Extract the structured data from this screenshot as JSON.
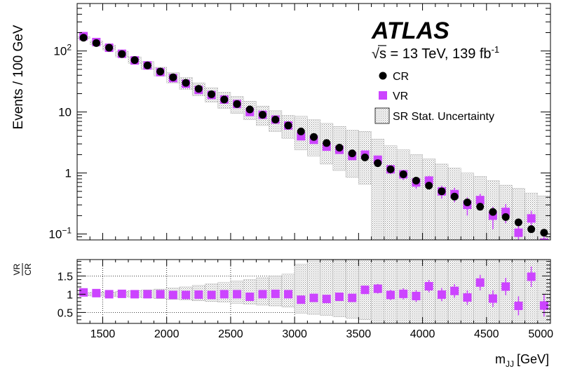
{
  "chart_data": [
    {
      "type": "scatter",
      "panel": "main",
      "ylabel": "Events / 100 GeV",
      "xlabel": "",
      "yscale": "log",
      "xlim": [
        1300,
        5000
      ],
      "ylim": [
        0.08,
        600
      ],
      "y_tick_labels": [
        "10^-1",
        "1",
        "10",
        "10^2"
      ],
      "y_ticks": [
        0.1,
        1,
        10,
        100
      ],
      "experiment_label": "ATLAS",
      "energy_label": "√s = 13 TeV, 139 fb",
      "energy_label_sup": "-1",
      "legend_placement": "top-right",
      "legend": [
        {
          "name": "CR",
          "marker": "circle",
          "color": "#000000"
        },
        {
          "name": "VR",
          "marker": "square",
          "color": "#cc44ff"
        },
        {
          "name": "SR Stat. Uncertainty",
          "marker": "hatched-box",
          "color": "#999999"
        }
      ],
      "x": [
        1350,
        1450,
        1550,
        1650,
        1750,
        1850,
        1950,
        2050,
        2150,
        2250,
        2350,
        2450,
        2550,
        2650,
        2750,
        2850,
        2950,
        3050,
        3150,
        3250,
        3350,
        3450,
        3550,
        3650,
        3750,
        3850,
        3950,
        4050,
        4150,
        4250,
        4350,
        4450,
        4550,
        4650,
        4750,
        4850,
        4950
      ],
      "series": [
        {
          "name": "CR",
          "values": [
            165,
            135,
            113,
            89,
            71,
            58,
            46,
            37,
            30,
            24,
            19.5,
            16,
            13.5,
            11,
            9,
            7.5,
            6,
            4.8,
            3.9,
            3.1,
            2.6,
            2.1,
            1.8,
            1.45,
            1.15,
            0.95,
            0.75,
            0.62,
            0.5,
            0.41,
            0.33,
            0.28,
            0.23,
            0.19,
            0.155,
            0.12,
            0.105
          ]
        },
        {
          "name": "VR",
          "values": [
            175,
            140,
            113,
            90,
            70,
            58,
            45,
            36,
            29,
            23,
            19,
            16,
            13.5,
            10,
            9,
            7.5,
            6,
            4,
            3.5,
            2.7,
            2.4,
            1.9,
            2,
            1.65,
            1.15,
            0.95,
            0.7,
            0.75,
            0.5,
            0.45,
            0.3,
            0.36,
            0.2,
            0.23,
            0.105,
            0.18,
            0.072
          ],
          "err_lo": [
            4,
            3,
            3,
            2,
            2,
            2,
            1.5,
            1.2,
            1,
            1,
            0.9,
            0.8,
            0.7,
            0.6,
            0.6,
            0.5,
            0.4,
            0.4,
            0.35,
            0.3,
            0.3,
            0.25,
            0.25,
            0.22,
            0.2,
            0.18,
            0.15,
            0.15,
            0.12,
            0.12,
            0.1,
            0.1,
            0.08,
            0.08,
            0.05,
            0.06,
            0.03
          ],
          "err_hi": [
            4,
            3,
            3,
            2,
            2,
            2,
            1.5,
            1.2,
            1,
            1,
            0.9,
            0.8,
            0.7,
            0.6,
            0.6,
            0.5,
            0.4,
            0.4,
            0.35,
            0.3,
            0.3,
            0.25,
            0.25,
            0.22,
            0.2,
            0.18,
            0.15,
            0.15,
            0.12,
            0.12,
            0.1,
            0.1,
            0.08,
            0.08,
            0.05,
            0.06,
            0.03
          ]
        },
        {
          "name": "SR Stat. Uncertainty",
          "band_lo": [
            160,
            128,
            104,
            80,
            63,
            50,
            39,
            30,
            23.5,
            18.5,
            14.5,
            11.5,
            9.5,
            7.5,
            6,
            4.8,
            3.7,
            2.4,
            1.9,
            1.4,
            1.1,
            0.85,
            0.65,
            0.08,
            0.08,
            0.08,
            0.08,
            0.08,
            0.08,
            0.08,
            0.08,
            0.08,
            0.08,
            0.08,
            0.08,
            0.08,
            0.08
          ],
          "band_hi": [
            172,
            145,
            124,
            99,
            80,
            67,
            54,
            44,
            37,
            30,
            25,
            21,
            18,
            15,
            12.5,
            10.5,
            8.8,
            8.5,
            7.5,
            6.5,
            5.8,
            5,
            4.8,
            3.6,
            2.8,
            2.4,
            2,
            1.7,
            1.4,
            1.2,
            1,
            0.88,
            0.75,
            0.63,
            0.56,
            0.47,
            0.42
          ]
        }
      ]
    },
    {
      "type": "scatter",
      "panel": "ratio",
      "ylabel_num": "VR",
      "ylabel_den": "CR",
      "xlabel": "m",
      "xlabel_sub": "JJ",
      "xlabel_unit": "[GeV]",
      "xlim": [
        1300,
        5000
      ],
      "ylim": [
        0.2,
        1.95
      ],
      "y_tick_labels": [
        "0.5",
        "1",
        "1.5"
      ],
      "y_ticks": [
        0.5,
        1,
        1.5
      ],
      "x_tick_labels": [
        "1500",
        "2000",
        "2500",
        "3000",
        "3500",
        "4000",
        "4500",
        "5000"
      ],
      "x_ticks": [
        1500,
        2000,
        2500,
        3000,
        3500,
        4000,
        4500,
        5000
      ],
      "grid": true,
      "x": [
        1350,
        1450,
        1550,
        1650,
        1750,
        1850,
        1950,
        2050,
        2150,
        2250,
        2350,
        2450,
        2550,
        2650,
        2750,
        2850,
        2950,
        3050,
        3150,
        3250,
        3350,
        3450,
        3550,
        3650,
        3750,
        3850,
        3950,
        4050,
        4150,
        4250,
        4350,
        4450,
        4550,
        4650,
        4750,
        4850,
        4950
      ],
      "series": [
        {
          "name": "VR/CR",
          "values": [
            1.05,
            1.03,
            1.0,
            1.01,
            1.0,
            1.0,
            1.0,
            0.98,
            0.98,
            0.99,
            0.98,
            1.0,
            1.0,
            0.93,
            1.0,
            1.01,
            1.0,
            0.85,
            0.9,
            0.87,
            0.93,
            0.9,
            1.12,
            1.15,
            0.98,
            1.01,
            0.95,
            1.22,
            0.99,
            1.09,
            0.91,
            1.32,
            0.88,
            1.21,
            0.68,
            1.48,
            0.69
          ],
          "err": [
            0.03,
            0.03,
            0.03,
            0.03,
            0.03,
            0.04,
            0.04,
            0.04,
            0.04,
            0.05,
            0.05,
            0.05,
            0.06,
            0.06,
            0.07,
            0.07,
            0.07,
            0.08,
            0.09,
            0.1,
            0.1,
            0.11,
            0.12,
            0.13,
            0.14,
            0.15,
            0.16,
            0.17,
            0.18,
            0.19,
            0.2,
            0.21,
            0.23,
            0.24,
            0.26,
            0.28,
            0.3
          ]
        },
        {
          "name": "SR Stat. Uncertainty",
          "band_lo": [
            0.96,
            0.95,
            0.94,
            0.93,
            0.92,
            0.9,
            0.88,
            0.86,
            0.84,
            0.82,
            0.8,
            0.78,
            0.75,
            0.73,
            0.7,
            0.68,
            0.65,
            0.48,
            0.45,
            0.42,
            0.38,
            0.34,
            0.3,
            0.2,
            0.2,
            0.2,
            0.2,
            0.2,
            0.2,
            0.2,
            0.2,
            0.2,
            0.2,
            0.2,
            0.2,
            0.2,
            0.2
          ],
          "band_hi": [
            1.04,
            1.05,
            1.06,
            1.08,
            1.1,
            1.12,
            1.14,
            1.17,
            1.2,
            1.24,
            1.28,
            1.32,
            1.36,
            1.4,
            1.45,
            1.5,
            1.55,
            1.82,
            1.9,
            1.95,
            1.95,
            1.95,
            1.95,
            1.95,
            1.95,
            1.95,
            1.95,
            1.95,
            1.95,
            1.95,
            1.95,
            1.95,
            1.95,
            1.95,
            1.95,
            1.95,
            1.95
          ]
        }
      ]
    }
  ]
}
